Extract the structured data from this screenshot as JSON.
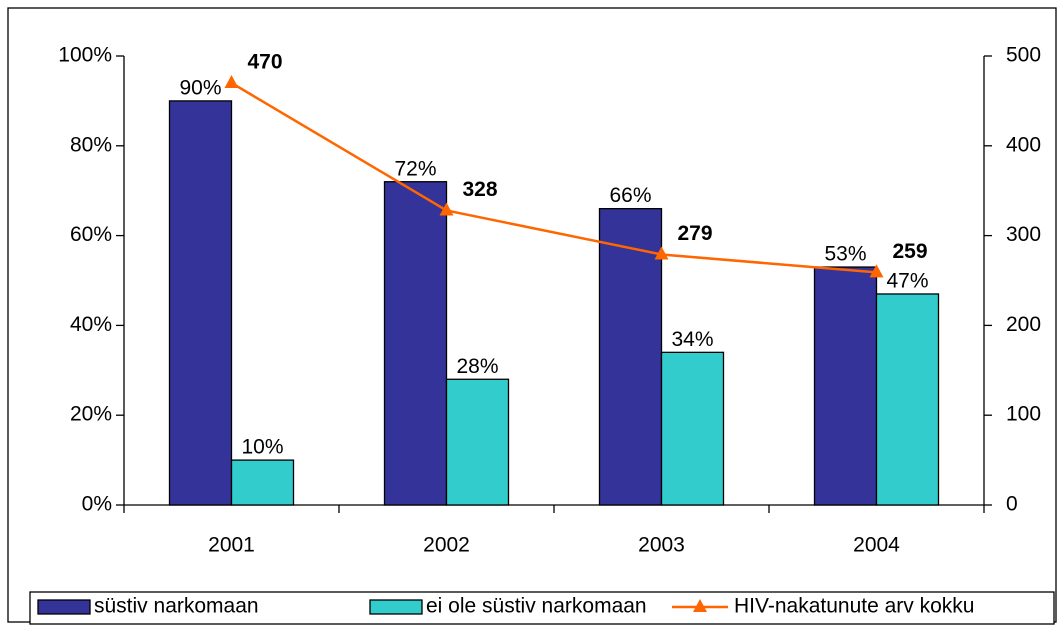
{
  "chart_data": {
    "type": "bar",
    "categories": [
      "2001",
      "2002",
      "2003",
      "2004"
    ],
    "series": [
      {
        "name": "süstiv narkomaan",
        "color": "#333399",
        "values": [
          90,
          72,
          66,
          53
        ],
        "value_labels": [
          "90%",
          "72%",
          "66%",
          "53%"
        ]
      },
      {
        "name": "ei ole süstiv narkomaan",
        "color": "#33cccc",
        "values": [
          10,
          28,
          34,
          47
        ],
        "value_labels": [
          "10%",
          "28%",
          "34%",
          "47%"
        ]
      },
      {
        "name": "HIV-nakatunute arv kokku",
        "color": "#ff6600",
        "type": "line",
        "axis": "y2",
        "values": [
          470,
          328,
          279,
          259
        ]
      }
    ],
    "ylim": [
      0,
      100
    ],
    "yticks": [
      {
        "value": 0,
        "label": "0%"
      },
      {
        "value": 20,
        "label": "20%"
      },
      {
        "value": 40,
        "label": "40%"
      },
      {
        "value": 60,
        "label": "60%"
      },
      {
        "value": 80,
        "label": "80%"
      },
      {
        "value": 100,
        "label": "100%"
      }
    ],
    "y2lim": [
      0,
      500
    ],
    "y2ticks": [
      0,
      100,
      200,
      300,
      400,
      500
    ],
    "grid": false,
    "legend": "bottom"
  }
}
